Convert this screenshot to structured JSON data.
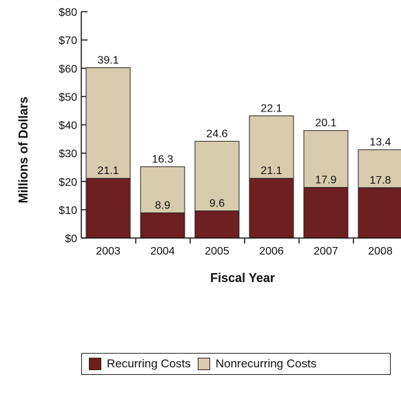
{
  "chart_data": {
    "type": "bar",
    "stacked": true,
    "categories": [
      "2003",
      "2004",
      "2005",
      "2006",
      "2007",
      "2008"
    ],
    "series": [
      {
        "name": "Recurring Costs",
        "values": [
          21.1,
          8.9,
          9.6,
          21.1,
          17.9,
          17.8
        ],
        "color": "#6e1f20"
      },
      {
        "name": "Nonrecurring Costs",
        "values": [
          39.1,
          16.3,
          24.6,
          22.1,
          20.1,
          13.4
        ],
        "color": "#d8ccae"
      }
    ],
    "xlabel": "Fiscal Year",
    "ylabel": "Millions of Dollars",
    "ylim": [
      0,
      80
    ],
    "yticks": [
      "$0",
      "$10",
      "$20",
      "$30",
      "$40",
      "$50",
      "$60",
      "$70",
      "$80"
    ],
    "grid": false,
    "legend": "bottom"
  }
}
